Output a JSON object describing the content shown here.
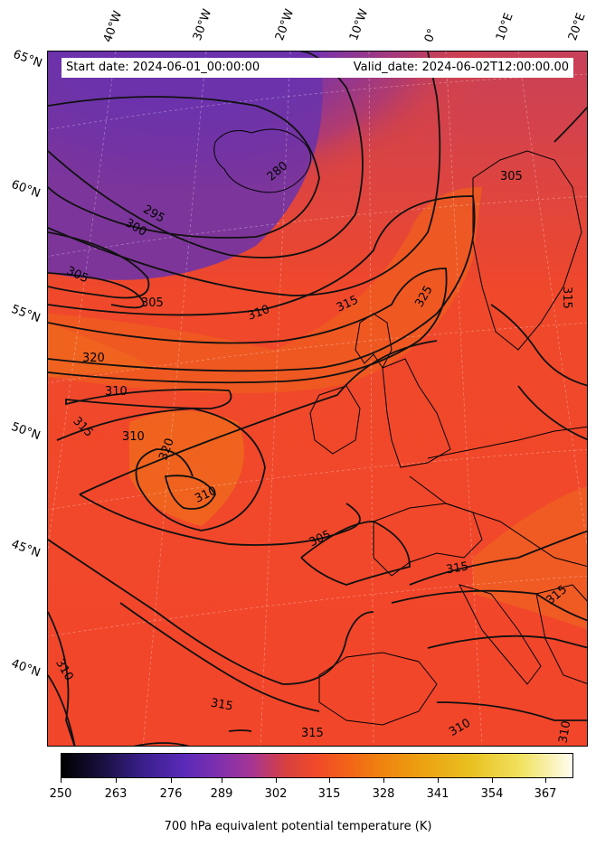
{
  "header": {
    "start_date": "Start date: 2024-06-01_00:00:00",
    "valid_date": "Valid_date: 2024-06-02T12:00:00.00"
  },
  "longitude_labels": [
    "40°W",
    "30°W",
    "20°W",
    "10°W",
    "0°",
    "10°E",
    "20°E"
  ],
  "latitude_labels": [
    "65°N",
    "60°N",
    "55°N",
    "50°N",
    "45°N",
    "40°N"
  ],
  "contour_labels": [
    "280",
    "295",
    "300",
    "305",
    "305",
    "305",
    "310",
    "315",
    "325",
    "315",
    "320",
    "310",
    "315",
    "310",
    "320",
    "310",
    "305",
    "315",
    "315",
    "310",
    "315",
    "315",
    "310",
    "310"
  ],
  "colorbar": {
    "ticks": [
      "250",
      "263",
      "276",
      "289",
      "302",
      "315",
      "328",
      "341",
      "354",
      "367"
    ],
    "title": "700 hPa equivalent potential temperature (K)",
    "range": [
      250,
      370
    ],
    "colormap": "CMRmap"
  },
  "colors": {
    "cold_purple": "#6a33a8",
    "warm_red": "#f2452a",
    "orange": "#ef6a1c"
  }
}
